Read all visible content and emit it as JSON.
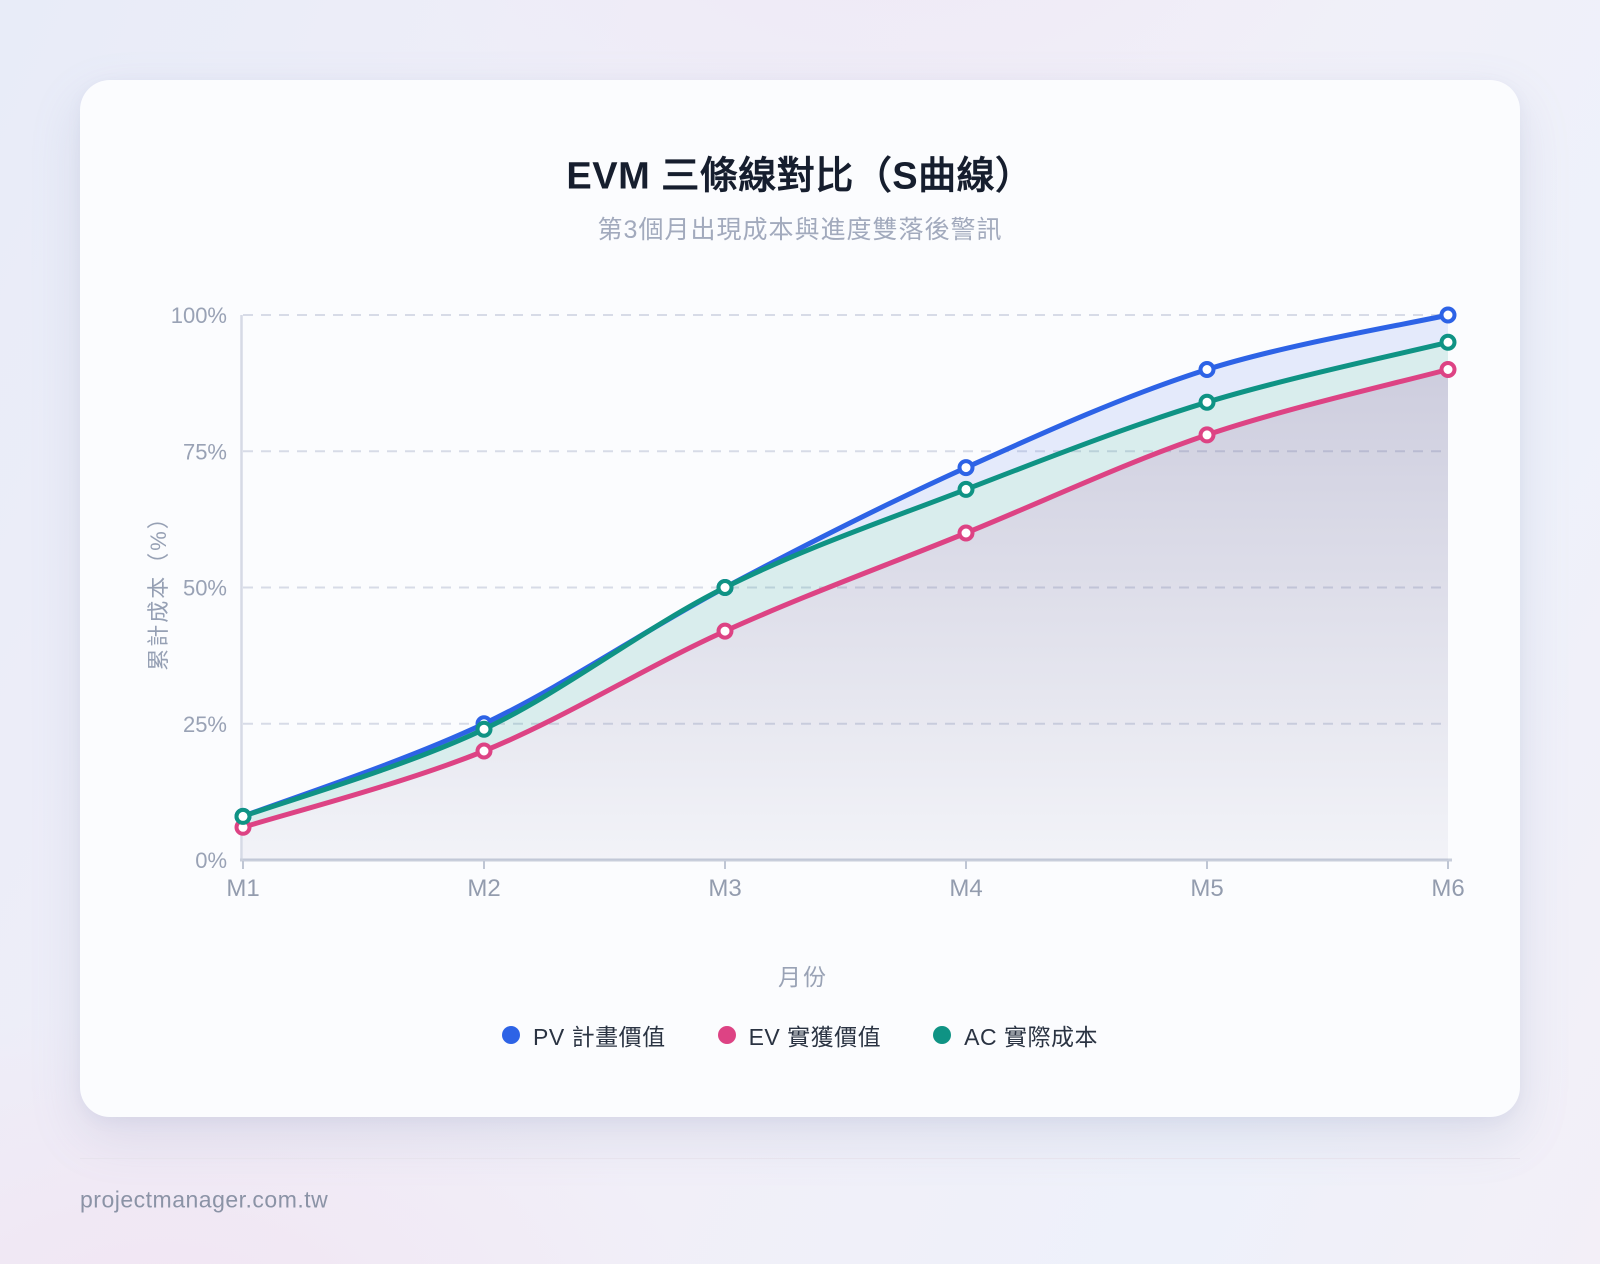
{
  "chart_data": {
    "type": "line",
    "title": "EVM 三條線對比（S曲線）",
    "subtitle": "第3個月出現成本與進度雙落後警訊",
    "xlabel": "月份",
    "ylabel": "累計成本（%）",
    "categories": [
      "M1",
      "M2",
      "M3",
      "M4",
      "M5",
      "M6"
    ],
    "y_tick_labels": [
      "0%",
      "25%",
      "50%",
      "75%",
      "100%"
    ],
    "y_tick_values": [
      0,
      25,
      50,
      75,
      100
    ],
    "ylim": [
      0,
      100
    ],
    "grid": "dashed horizontal",
    "legend_position": "bottom",
    "curve": "smooth",
    "series": [
      {
        "id": "PV",
        "name": "PV 計畫價值",
        "color": "#2d63e6",
        "values": [
          8,
          25,
          50,
          72,
          90,
          100
        ]
      },
      {
        "id": "EV",
        "name": "EV 實獲價值",
        "color": "#dd4384",
        "values": [
          6,
          20,
          42,
          60,
          78,
          90
        ]
      },
      {
        "id": "AC",
        "name": "AC 實際成本",
        "color": "#0f9384",
        "values": [
          8,
          24,
          50,
          68,
          84,
          95
        ]
      }
    ]
  },
  "colors": {
    "title_text": "#161e2e",
    "subtitle_text": "#a2aabd",
    "axis_text": "#99a2b5",
    "grid_line": "#d7dbe7",
    "axis_line": "#c8cedb",
    "band_pv_ac": "rgba(67,105,227,0.12)",
    "band_ac_ev": "rgba(15,146,133,0.14)",
    "band_ev_base_top": "rgba(100,97,148,0.30)",
    "band_ev_base_bottom": "rgba(100,97,148,0.06)"
  },
  "footer": {
    "site": "projectmanager.com.tw"
  }
}
